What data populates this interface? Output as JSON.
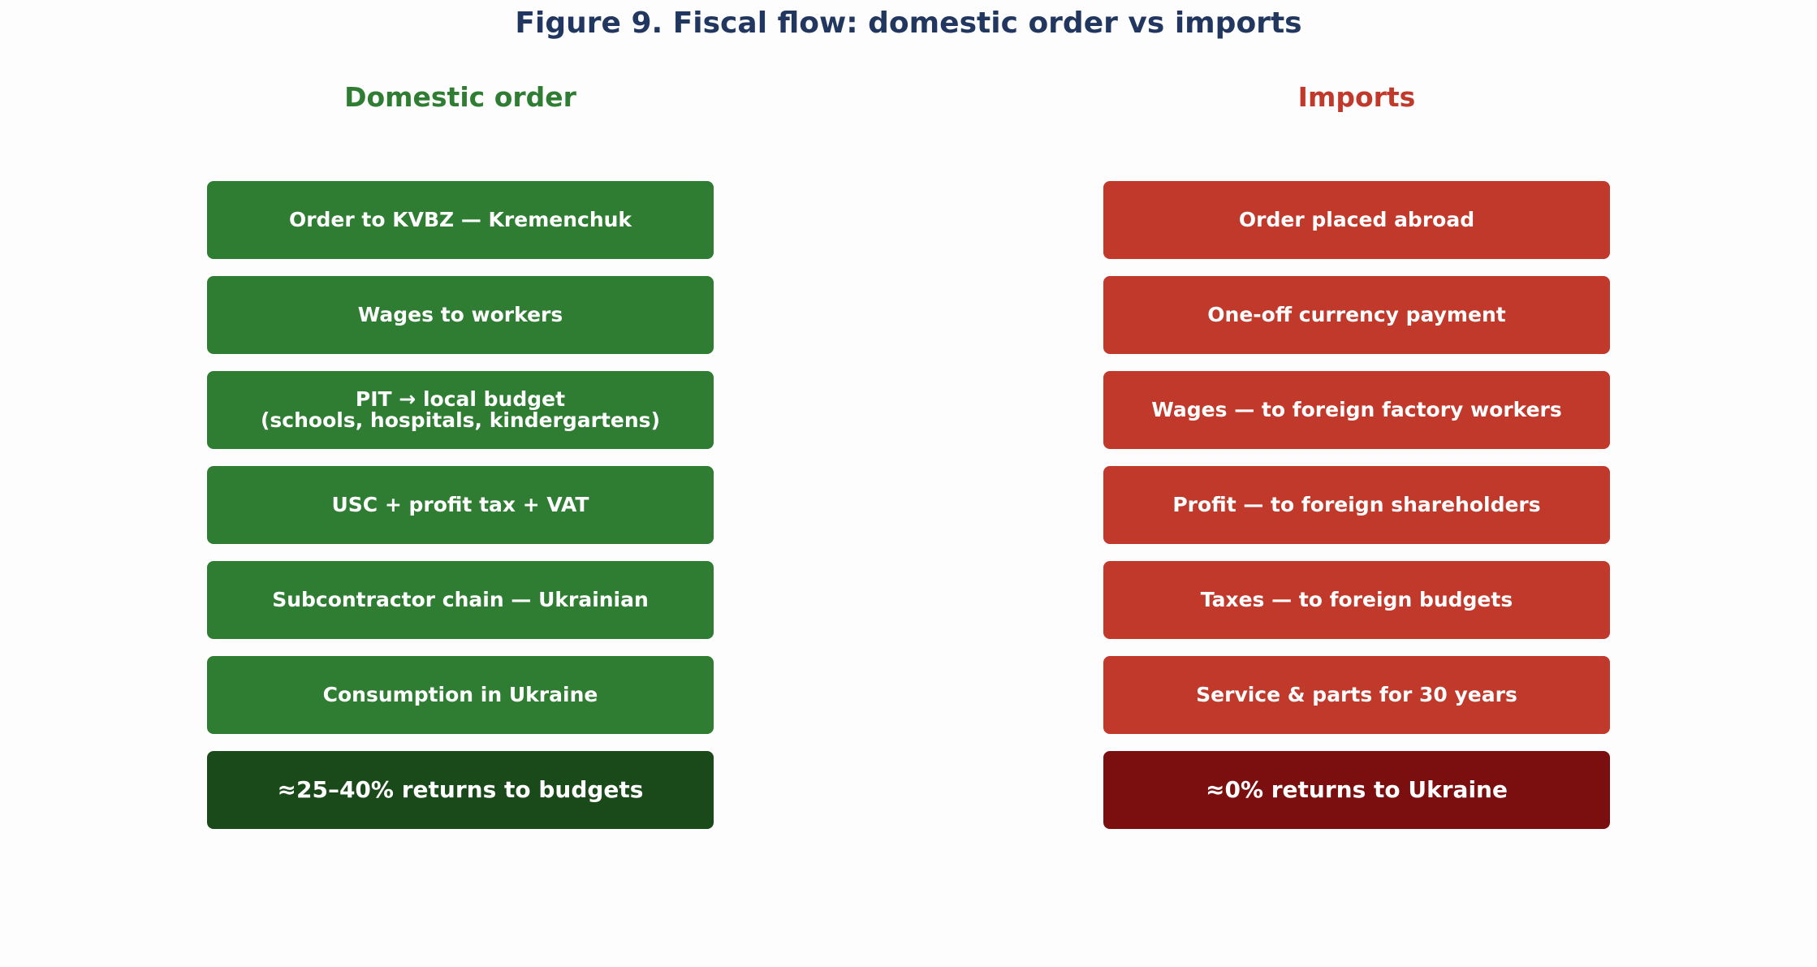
{
  "title": "Figure 9. Fiscal flow: domestic order vs imports",
  "columns": [
    {
      "header": "Domestic order",
      "boxes": [
        "Order to KVBZ — Kremenchuk",
        "Wages to workers",
        "PIT → local budget\n(schools, hospitals, kindergartens)",
        "USC + profit tax + VAT",
        "Subcontractor chain — Ukrainian",
        "Consumption in Ukraine",
        "≈25–40% returns to budgets"
      ]
    },
    {
      "header": "Imports",
      "boxes": [
        "Order placed abroad",
        "One-off currency payment",
        "Wages — to foreign factory workers",
        "Profit — to foreign shareholders",
        "Taxes — to foreign budgets",
        "Service & parts for 30 years",
        "≈0% returns to Ukraine"
      ]
    }
  ]
}
